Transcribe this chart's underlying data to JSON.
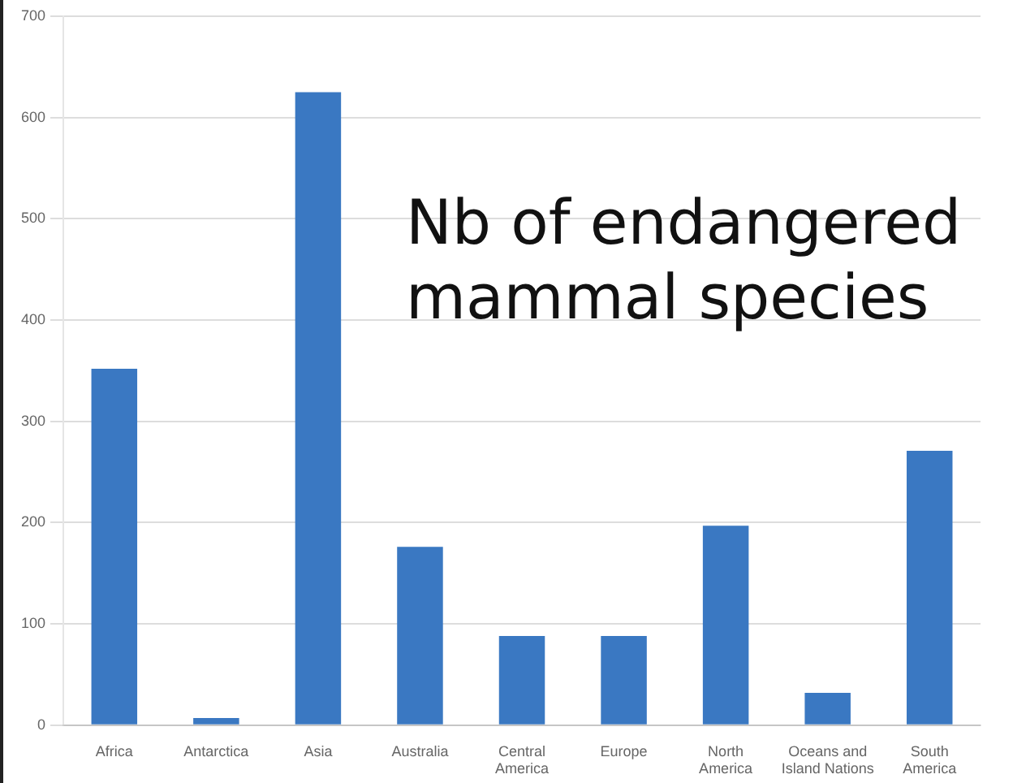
{
  "chart_data": {
    "type": "bar",
    "title": "Nb of endangered mammal species",
    "categories": [
      "Africa",
      "Antarctica",
      "Asia",
      "Australia",
      "Central America",
      "Europe",
      "North America",
      "Oceans and Island Nations",
      "South America"
    ],
    "values": [
      352,
      7,
      625,
      176,
      88,
      88,
      197,
      32,
      271
    ],
    "color": "#3a78c2",
    "ylim": [
      0,
      700
    ],
    "yticks": [
      0,
      100,
      200,
      300,
      400,
      500,
      600,
      700
    ],
    "grid": "y"
  }
}
